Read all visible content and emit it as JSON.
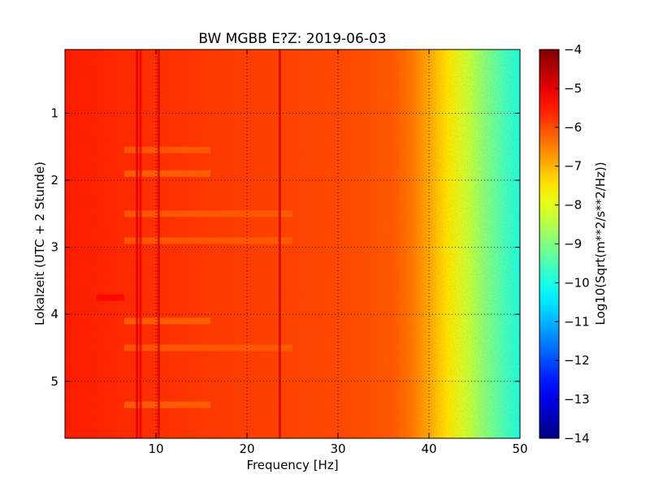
{
  "chart_data": {
    "type": "heatmap",
    "title": "BW MGBB E?Z: 2019-06-03",
    "xlabel": "Frequency [Hz]",
    "ylabel": "Lokalzeit (UTC + 2 Stunde)",
    "xlim": [
      0,
      50
    ],
    "ylim": [
      5.85,
      0.05
    ],
    "xticks": [
      {
        "value": 10,
        "label": "10"
      },
      {
        "value": 20,
        "label": "20"
      },
      {
        "value": 30,
        "label": "30"
      },
      {
        "value": 40,
        "label": "40"
      },
      {
        "value": 50,
        "label": "50"
      }
    ],
    "yticks": [
      {
        "value": 1,
        "label": "1"
      },
      {
        "value": 2,
        "label": "2"
      },
      {
        "value": 3,
        "label": "3"
      },
      {
        "value": 4,
        "label": "4"
      },
      {
        "value": 5,
        "label": "5"
      }
    ],
    "grid": true,
    "colorbar": {
      "label": "Log10(Sqrt(m**2/s**2/Hz))",
      "range": [
        -14,
        -4
      ],
      "colormap": "jet",
      "ticks": [
        {
          "value": -4,
          "label": "−4"
        },
        {
          "value": -5,
          "label": "−5"
        },
        {
          "value": -6,
          "label": "−6"
        },
        {
          "value": -7,
          "label": "−7"
        },
        {
          "value": -8,
          "label": "−8"
        },
        {
          "value": -9,
          "label": "−9"
        },
        {
          "value": -10,
          "label": "−10"
        },
        {
          "value": -11,
          "label": "−11"
        },
        {
          "value": -12,
          "label": "−12"
        },
        {
          "value": -13,
          "label": "−13"
        },
        {
          "value": -14,
          "label": "−14"
        }
      ]
    },
    "frequency_profile": [
      {
        "f": 0,
        "v": -5.5
      },
      {
        "f": 10,
        "v": -5.7
      },
      {
        "f": 20,
        "v": -5.85
      },
      {
        "f": 30,
        "v": -5.95
      },
      {
        "f": 36,
        "v": -6.1
      },
      {
        "f": 38,
        "v": -6.4
      },
      {
        "f": 40,
        "v": -6.9
      },
      {
        "f": 42,
        "v": -7.5
      },
      {
        "f": 44,
        "v": -8.2
      },
      {
        "f": 46,
        "v": -8.9
      },
      {
        "f": 48,
        "v": -9.5
      },
      {
        "f": 50,
        "v": -10.0
      }
    ],
    "vertical_lines": [
      {
        "f": 7.9,
        "v": -5.0
      },
      {
        "f": 8.3,
        "v": -5.1
      },
      {
        "f": 10.3,
        "v": -4.9
      },
      {
        "f": 23.6,
        "v": -4.8
      }
    ],
    "horizontal_bands": [
      {
        "t": 1.55,
        "f_range": [
          6.5,
          16
        ],
        "v": -6.2
      },
      {
        "t": 1.9,
        "f_range": [
          6.5,
          16
        ],
        "v": -6.3
      },
      {
        "t": 2.5,
        "f_range": [
          6.5,
          25
        ],
        "v": -6.2
      },
      {
        "t": 2.9,
        "f_range": [
          6.5,
          25
        ],
        "v": -6.2
      },
      {
        "t": 3.75,
        "f_range": [
          3.5,
          6.5
        ],
        "v": -5.2
      },
      {
        "t": 4.1,
        "f_range": [
          6.5,
          16
        ],
        "v": -6.3
      },
      {
        "t": 4.5,
        "f_range": [
          6.5,
          25
        ],
        "v": -6.2
      },
      {
        "t": 5.35,
        "f_range": [
          6.5,
          16
        ],
        "v": -6.3
      }
    ]
  }
}
